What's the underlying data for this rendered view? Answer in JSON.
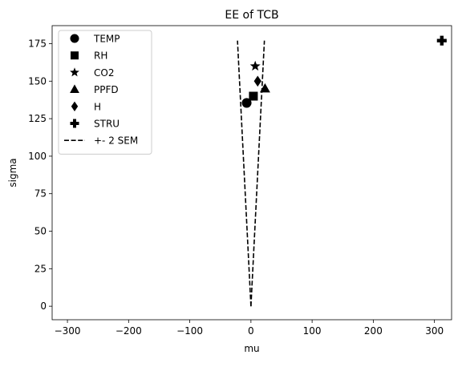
{
  "chart_data": {
    "type": "scatter",
    "title": "EE of TCB",
    "xlabel": "mu",
    "ylabel": "sigma",
    "xlim": [
      -325,
      328
    ],
    "ylim": [
      -9,
      187
    ],
    "xticks": [
      -300,
      -200,
      -100,
      0,
      100,
      200,
      300
    ],
    "yticks": [
      0,
      25,
      50,
      75,
      100,
      125,
      150,
      175
    ],
    "grid": false,
    "legend_position": "top-left",
    "series": [
      {
        "name": "TEMP",
        "marker": "circle",
        "color": "#000000",
        "x": [
          -7
        ],
        "y": [
          135.5
        ]
      },
      {
        "name": "RH",
        "marker": "square",
        "color": "#000000",
        "x": [
          4
        ],
        "y": [
          140
        ]
      },
      {
        "name": "CO2",
        "marker": "star",
        "color": "#000000",
        "x": [
          7
        ],
        "y": [
          160
        ]
      },
      {
        "name": "PPFD",
        "marker": "triangle",
        "color": "#000000",
        "x": [
          23
        ],
        "y": [
          145
        ]
      },
      {
        "name": "H",
        "marker": "diamond",
        "color": "#000000",
        "x": [
          11
        ],
        "y": [
          150
        ]
      },
      {
        "name": "STRU",
        "marker": "plus",
        "color": "#000000",
        "x": [
          312
        ],
        "y": [
          177
        ]
      },
      {
        "name": "+- 2 SEM",
        "marker": "dashed-line",
        "color": "#000000",
        "lines": [
          {
            "x": [
              0,
              -22
            ],
            "y": [
              0,
              177
            ]
          },
          {
            "x": [
              0,
              22
            ],
            "y": [
              0,
              177
            ]
          }
        ]
      }
    ]
  }
}
